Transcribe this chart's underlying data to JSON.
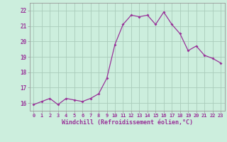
{
  "x": [
    0,
    1,
    2,
    3,
    4,
    5,
    6,
    7,
    8,
    9,
    10,
    11,
    12,
    13,
    14,
    15,
    16,
    17,
    18,
    19,
    20,
    21,
    22,
    23
  ],
  "y": [
    15.9,
    16.1,
    16.3,
    15.9,
    16.3,
    16.2,
    16.1,
    16.3,
    16.6,
    17.6,
    19.8,
    21.1,
    21.7,
    21.6,
    21.7,
    21.1,
    21.9,
    21.1,
    20.5,
    19.4,
    19.7,
    19.1,
    18.9,
    18.6
  ],
  "line_color": "#993399",
  "marker": "D",
  "marker_size": 2.0,
  "bg_color": "#cceedd",
  "grid_color": "#aaccbb",
  "xlabel": "Windchill (Refroidissement éolien,°C)",
  "xlabel_color": "#993399",
  "tick_color": "#993399",
  "spine_color": "#999999",
  "ylim": [
    15.5,
    22.5
  ],
  "xlim": [
    -0.5,
    23.5
  ],
  "yticks": [
    16,
    17,
    18,
    19,
    20,
    21,
    22
  ],
  "xticks": [
    0,
    1,
    2,
    3,
    4,
    5,
    6,
    7,
    8,
    9,
    10,
    11,
    12,
    13,
    14,
    15,
    16,
    17,
    18,
    19,
    20,
    21,
    22,
    23
  ],
  "xtick_fontsize": 5.0,
  "ytick_fontsize": 5.5,
  "xlabel_fontsize": 6.0
}
